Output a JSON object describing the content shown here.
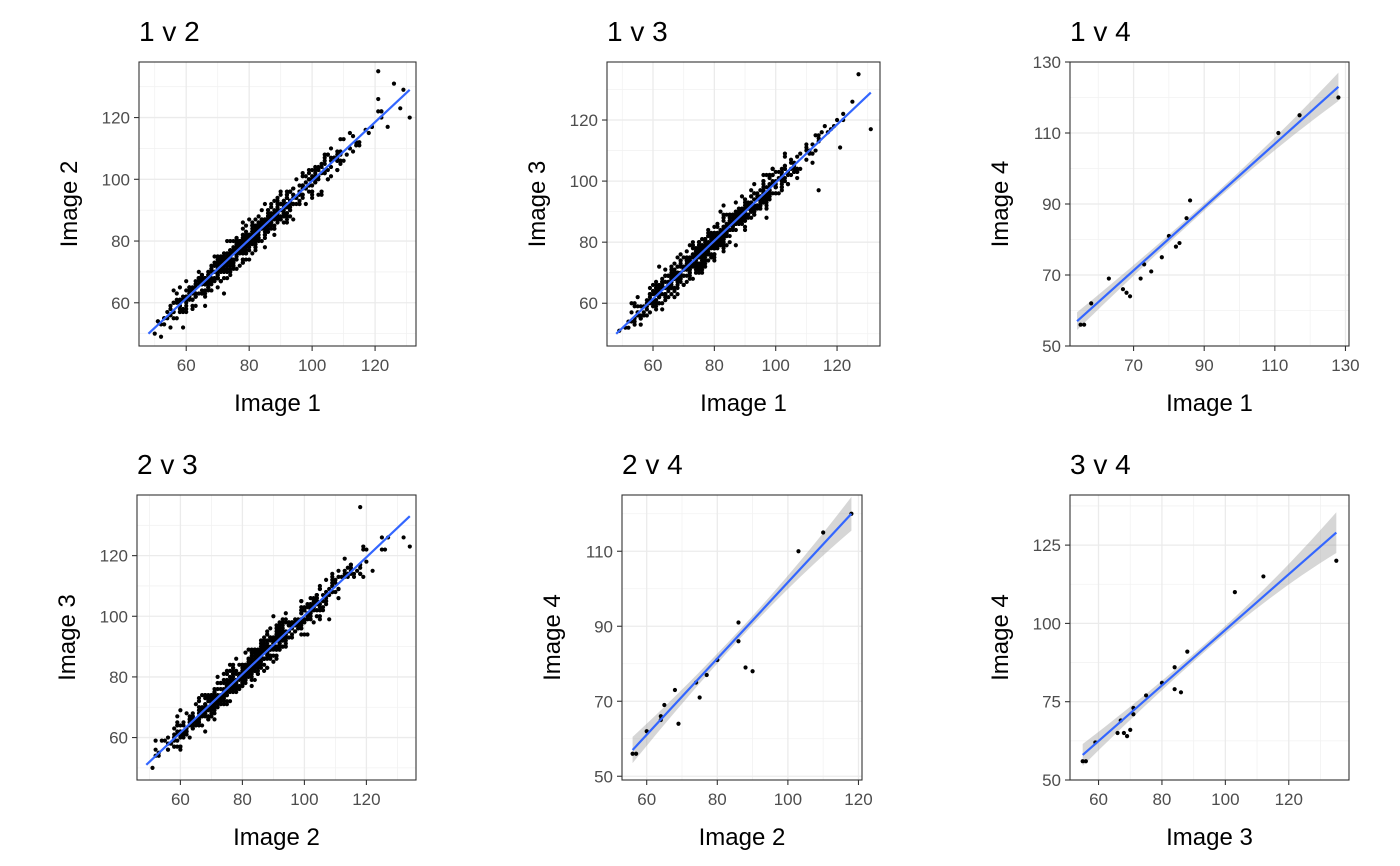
{
  "chart_data": [
    {
      "type": "scatter",
      "title": "1 v 2",
      "xlabel": "Image 1",
      "ylabel": "Image 2",
      "xlim": [
        45,
        133
      ],
      "ylim": [
        46,
        138
      ],
      "xticks": [
        60,
        80,
        100,
        120
      ],
      "yticks": [
        60,
        80,
        100,
        120
      ],
      "n_points": 700,
      "x_range": [
        48,
        131
      ],
      "fit": {
        "x0": 48,
        "y0": 50,
        "x1": 131,
        "y1": 129
      },
      "se_band": false,
      "fixed_points": [
        [
          121,
          135
        ],
        [
          126,
          131
        ],
        [
          128,
          123
        ],
        [
          131,
          120
        ],
        [
          124,
          117
        ]
      ]
    },
    {
      "type": "scatter",
      "title": "1 v 3",
      "xlabel": "Image 1",
      "ylabel": "Image 3",
      "xlim": [
        45,
        134
      ],
      "ylim": [
        46,
        139
      ],
      "xticks": [
        60,
        80,
        100,
        120
      ],
      "yticks": [
        60,
        80,
        100,
        120
      ],
      "n_points": 700,
      "x_range": [
        48,
        131
      ],
      "fit": {
        "x0": 48,
        "y0": 50,
        "x1": 131,
        "y1": 129
      },
      "se_band": false,
      "fixed_points": [
        [
          127,
          135
        ],
        [
          125,
          126
        ],
        [
          131,
          117
        ],
        [
          121,
          111
        ],
        [
          114,
          97
        ]
      ]
    },
    {
      "type": "scatter",
      "title": "1 v 4",
      "xlabel": "Image 1",
      "ylabel": "Image 4",
      "xlim": [
        52,
        131
      ],
      "ylim": [
        50,
        130
      ],
      "xticks": [
        70,
        90,
        110,
        130
      ],
      "yticks": [
        50,
        70,
        90,
        110,
        130
      ],
      "points": [
        [
          55,
          56
        ],
        [
          56,
          56
        ],
        [
          58,
          62
        ],
        [
          63,
          69
        ],
        [
          67,
          66
        ],
        [
          68,
          65
        ],
        [
          69,
          64
        ],
        [
          72,
          69
        ],
        [
          73,
          73
        ],
        [
          75,
          71
        ],
        [
          78,
          75
        ],
        [
          80,
          81
        ],
        [
          82,
          78
        ],
        [
          83,
          79
        ],
        [
          85,
          86
        ],
        [
          86,
          91
        ],
        [
          111,
          110
        ],
        [
          117,
          115
        ],
        [
          128,
          120
        ]
      ],
      "fit": {
        "x0": 54,
        "y0": 57,
        "x1": 128,
        "y1": 123
      },
      "se_band": true,
      "se_halfwidth": [
        2.5,
        1.0,
        4.0
      ]
    },
    {
      "type": "scatter",
      "title": "2 v 3",
      "xlabel": "Image 2",
      "ylabel": "Image 3",
      "xlim": [
        46,
        136
      ],
      "ylim": [
        46,
        140
      ],
      "xticks": [
        60,
        80,
        100,
        120
      ],
      "yticks": [
        60,
        80,
        100,
        120
      ],
      "n_points": 700,
      "x_range": [
        49,
        134
      ],
      "fit": {
        "x0": 49,
        "y0": 51,
        "x1": 134,
        "y1": 133
      },
      "se_band": false,
      "fixed_points": [
        [
          118,
          136
        ],
        [
          132,
          126
        ],
        [
          134,
          123
        ],
        [
          119,
          122
        ],
        [
          122,
          115
        ]
      ]
    },
    {
      "type": "scatter",
      "title": "2 v 4",
      "xlabel": "Image 2",
      "ylabel": "Image 4",
      "xlim": [
        53,
        121
      ],
      "ylim": [
        49,
        125
      ],
      "xticks": [
        60,
        80,
        100,
        120
      ],
      "yticks": [
        50,
        70,
        90,
        110
      ],
      "points": [
        [
          56,
          56
        ],
        [
          57,
          56
        ],
        [
          60,
          62
        ],
        [
          64,
          65
        ],
        [
          64,
          66
        ],
        [
          65,
          69
        ],
        [
          68,
          73
        ],
        [
          69,
          64
        ],
        [
          74,
          75
        ],
        [
          75,
          71
        ],
        [
          77,
          77
        ],
        [
          80,
          81
        ],
        [
          86,
          86
        ],
        [
          86,
          91
        ],
        [
          88,
          79
        ],
        [
          90,
          78
        ],
        [
          103,
          110
        ],
        [
          110,
          115
        ],
        [
          118,
          120
        ]
      ],
      "fit": {
        "x0": 56,
        "y0": 57,
        "x1": 118,
        "y1": 120
      },
      "se_band": true,
      "se_halfwidth": [
        3.5,
        1.2,
        4.5
      ]
    },
    {
      "type": "scatter",
      "title": "3 v 4",
      "xlabel": "Image 3",
      "ylabel": "Image 4",
      "xlim": [
        51,
        139
      ],
      "ylim": [
        50,
        141
      ],
      "xticks": [
        60,
        80,
        100,
        120
      ],
      "yticks": [
        50,
        75,
        100,
        125
      ],
      "points": [
        [
          55,
          56
        ],
        [
          56,
          56
        ],
        [
          59,
          62
        ],
        [
          66,
          65
        ],
        [
          67,
          69
        ],
        [
          68,
          65
        ],
        [
          69,
          64
        ],
        [
          70,
          66
        ],
        [
          71,
          71
        ],
        [
          71,
          73
        ],
        [
          75,
          77
        ],
        [
          80,
          81
        ],
        [
          84,
          86
        ],
        [
          84,
          79
        ],
        [
          86,
          78
        ],
        [
          88,
          91
        ],
        [
          103,
          110
        ],
        [
          112,
          115
        ],
        [
          135,
          120
        ]
      ],
      "fit": {
        "x0": 55,
        "y0": 58,
        "x1": 135,
        "y1": 129
      },
      "se_band": true,
      "se_halfwidth": [
        3.5,
        1.2,
        6.5
      ]
    }
  ]
}
